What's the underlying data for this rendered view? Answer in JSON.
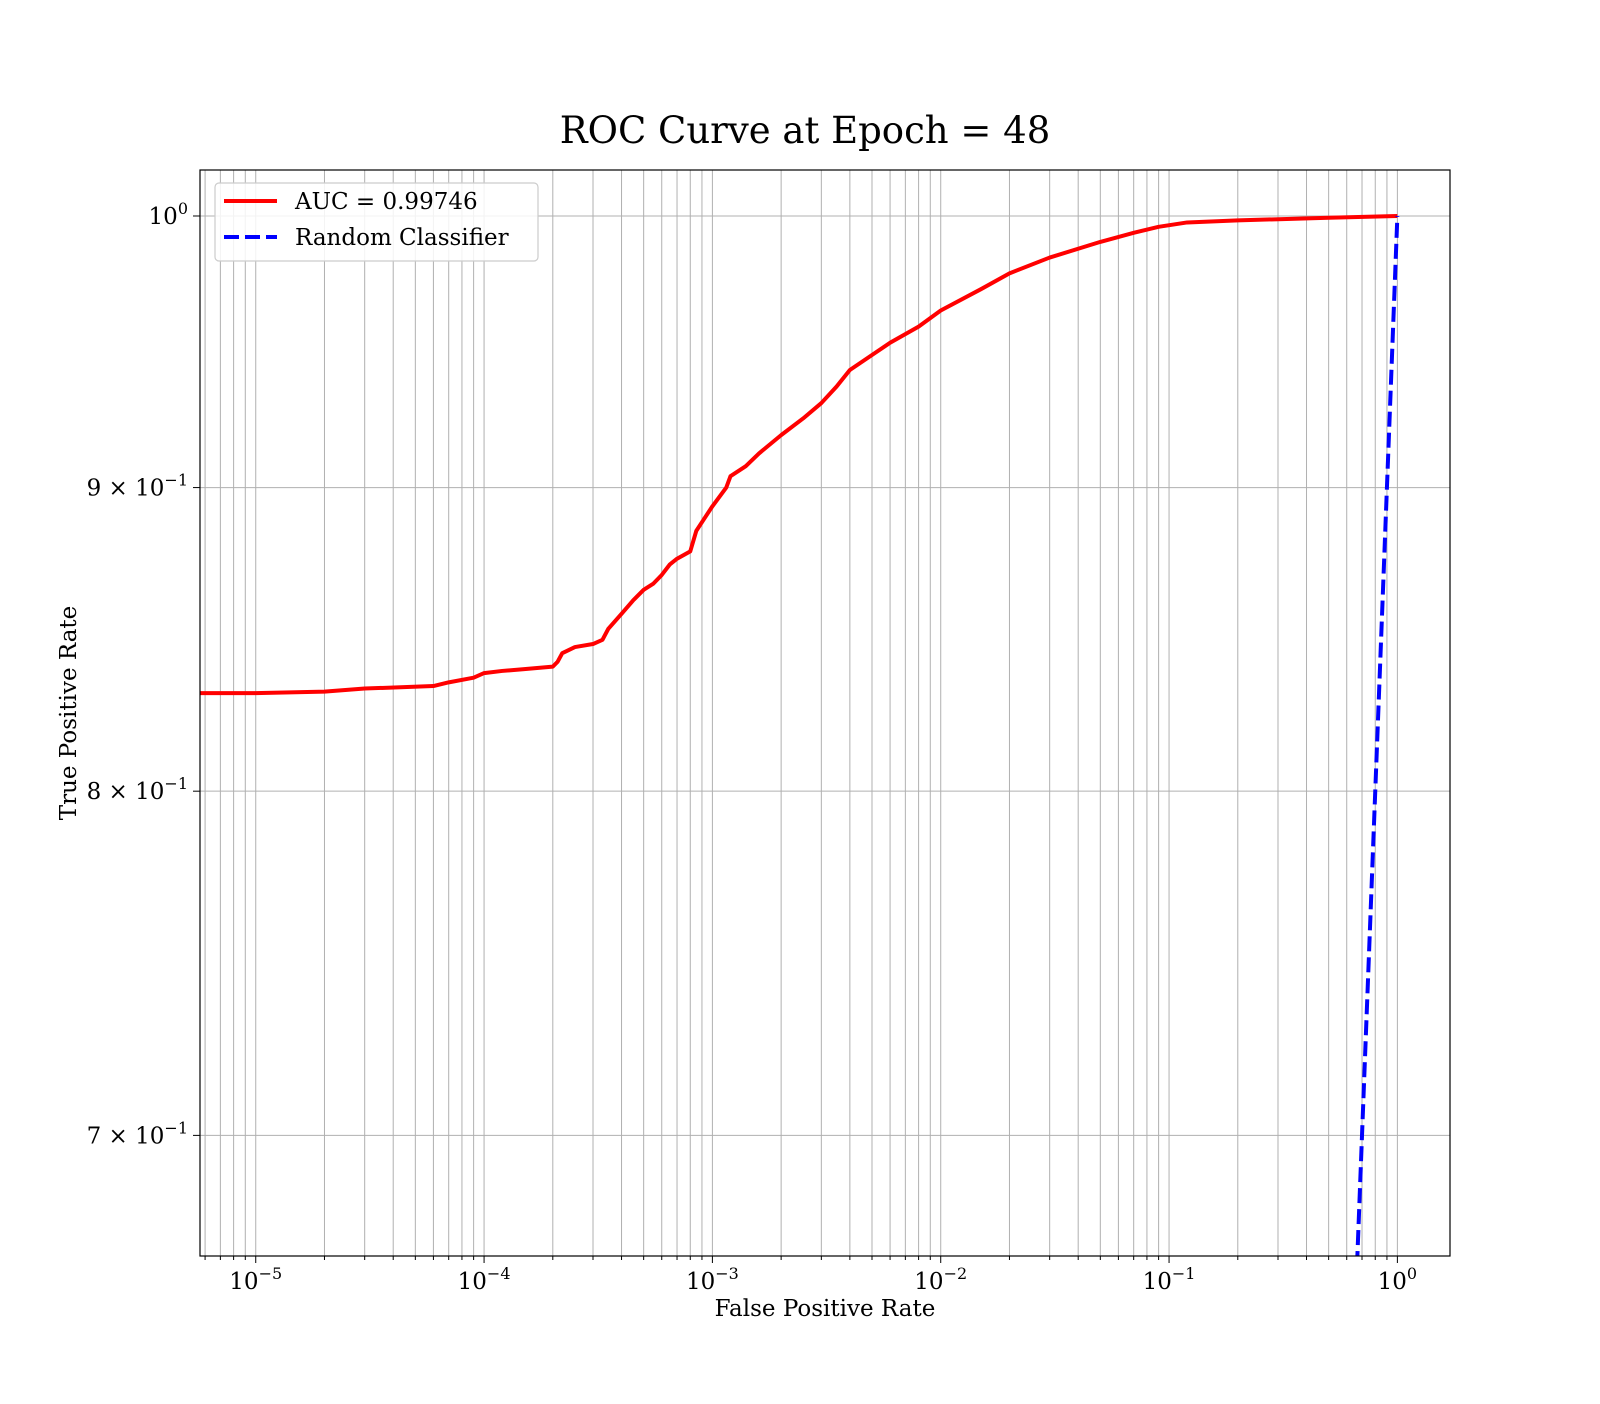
{
  "chart_data": {
    "type": "line",
    "title": "ROC Curve at Epoch = 48",
    "xlabel": "False Positive Rate",
    "ylabel": "True Positive Rate",
    "xscale": "log",
    "yscale": "log",
    "xlim": [
      5.7e-06,
      1.7
    ],
    "ylim": [
      0.668,
      1.018
    ],
    "grid": "both-major-and-minor-x, major-y",
    "legend_placement": "top-left",
    "x_ticks": [
      {
        "value": 1e-05,
        "base": "10",
        "exp": "−5"
      },
      {
        "value": 0.0001,
        "base": "10",
        "exp": "−4"
      },
      {
        "value": 0.001,
        "base": "10",
        "exp": "−3"
      },
      {
        "value": 0.01,
        "base": "10",
        "exp": "−2"
      },
      {
        "value": 0.1,
        "base": "10",
        "exp": "−1"
      },
      {
        "value": 1,
        "base": "10",
        "exp": "0"
      }
    ],
    "y_ticks": [
      {
        "value": 1.0,
        "mant": "",
        "base": "10",
        "exp": "0"
      },
      {
        "value": 0.9,
        "mant": "9 × ",
        "base": "10",
        "exp": "−1"
      },
      {
        "value": 0.8,
        "mant": "8 × ",
        "base": "10",
        "exp": "−1"
      },
      {
        "value": 0.7,
        "mant": "7 × ",
        "base": "10",
        "exp": "−1"
      }
    ],
    "series": [
      {
        "name": "AUC = 0.99746",
        "color": "#ff0000",
        "style": "solid",
        "points": [
          [
            5.7e-06,
            0.831
          ],
          [
            1e-05,
            0.831
          ],
          [
            2e-05,
            0.8315
          ],
          [
            3e-05,
            0.8325
          ],
          [
            6e-05,
            0.8333
          ],
          [
            7e-05,
            0.8345
          ],
          [
            9e-05,
            0.836
          ],
          [
            0.0001,
            0.8375
          ],
          [
            0.00012,
            0.8382
          ],
          [
            0.00015,
            0.8388
          ],
          [
            0.0002,
            0.8396
          ],
          [
            0.00021,
            0.8412
          ],
          [
            0.00022,
            0.844
          ],
          [
            0.00025,
            0.846
          ],
          [
            0.0003,
            0.847
          ],
          [
            0.00033,
            0.8484
          ],
          [
            0.00035,
            0.852
          ],
          [
            0.0004,
            0.857
          ],
          [
            0.00045,
            0.8615
          ],
          [
            0.0005,
            0.865
          ],
          [
            0.00055,
            0.867
          ],
          [
            0.0006,
            0.87
          ],
          [
            0.00065,
            0.8735
          ],
          [
            0.0007,
            0.8755
          ],
          [
            0.0008,
            0.878
          ],
          [
            0.00085,
            0.885
          ],
          [
            0.0009,
            0.888
          ],
          [
            0.001,
            0.8935
          ],
          [
            0.00115,
            0.9
          ],
          [
            0.0012,
            0.904
          ],
          [
            0.0014,
            0.9075
          ],
          [
            0.0016,
            0.912
          ],
          [
            0.002,
            0.9185
          ],
          [
            0.0025,
            0.9245
          ],
          [
            0.003,
            0.93
          ],
          [
            0.0035,
            0.936
          ],
          [
            0.004,
            0.942
          ],
          [
            0.005,
            0.9475
          ],
          [
            0.006,
            0.952
          ],
          [
            0.008,
            0.958
          ],
          [
            0.01,
            0.964
          ],
          [
            0.015,
            0.972
          ],
          [
            0.02,
            0.978
          ],
          [
            0.03,
            0.984
          ],
          [
            0.05,
            0.99
          ],
          [
            0.07,
            0.9935
          ],
          [
            0.09,
            0.9958
          ],
          [
            0.12,
            0.9975
          ],
          [
            0.2,
            0.9983
          ],
          [
            0.5,
            0.9993
          ],
          [
            1.0,
            1.0
          ]
        ]
      },
      {
        "name": "Random Classifier",
        "color": "#0000ff",
        "style": "dashed",
        "points": [
          [
            0.66,
            0.66
          ],
          [
            0.7,
            0.7
          ],
          [
            0.8,
            0.8
          ],
          [
            0.9,
            0.9
          ],
          [
            1.0,
            1.0
          ]
        ]
      }
    ]
  }
}
